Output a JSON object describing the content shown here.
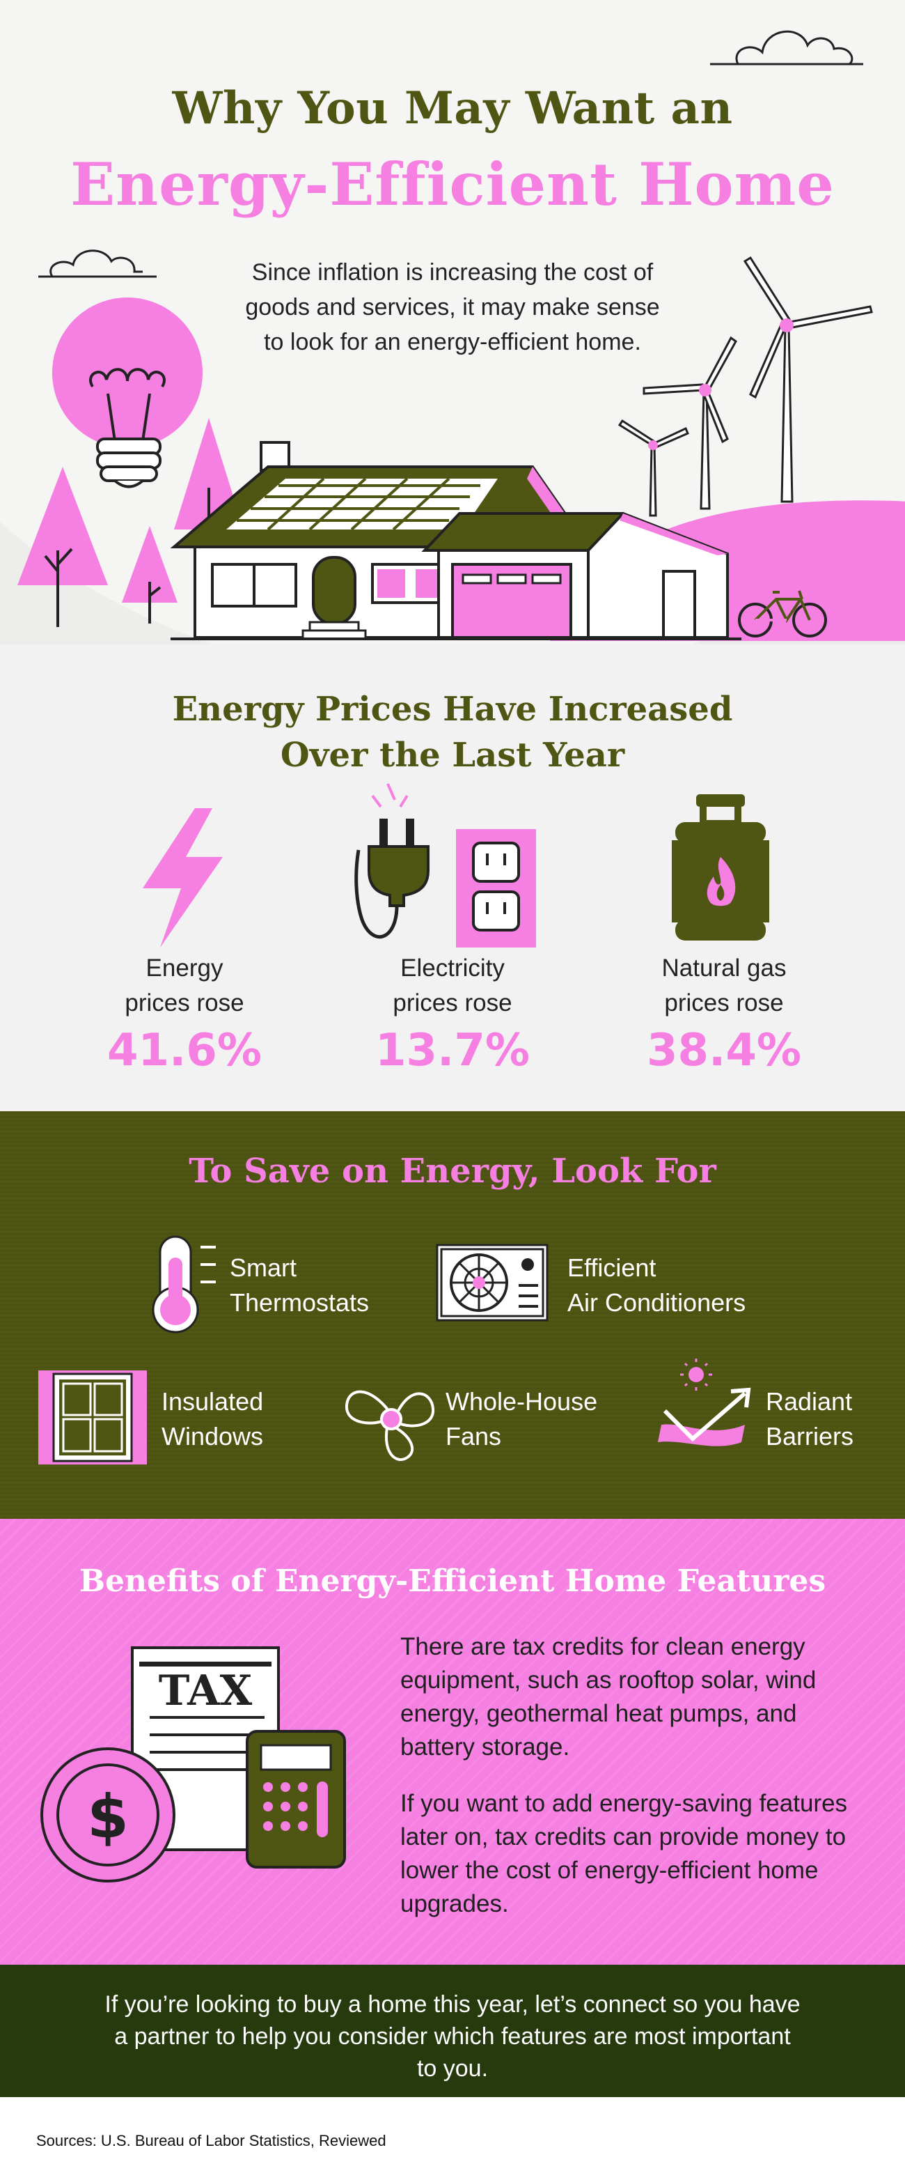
{
  "header": {
    "title_line1": "Why You May Want an",
    "title_line2": "Energy-Efficient Home",
    "intro": "Since inflation is increasing the cost of goods and services, it may make sense to look for an energy-efficient home."
  },
  "prices": {
    "title_line1": "Energy Prices Have Increased",
    "title_line2": "Over the Last Year",
    "stats": [
      {
        "label_line1": "Energy",
        "label_line2": "prices rose",
        "value": "41.6%",
        "icon": "lightning-bolt-icon"
      },
      {
        "label_line1": "Electricity",
        "label_line2": "prices rose",
        "value": "13.7%",
        "icon": "plug-outlet-icon"
      },
      {
        "label_line1": "Natural gas",
        "label_line2": "prices rose",
        "value": "38.4%",
        "icon": "gas-tank-icon"
      }
    ]
  },
  "save": {
    "title": "To Save on Energy, Look For",
    "features": [
      {
        "line1": "Smart",
        "line2": "Thermostats",
        "icon": "thermometer-icon"
      },
      {
        "line1": "Efficient",
        "line2": "Air Conditioners",
        "icon": "air-conditioner-icon"
      },
      {
        "line1": "Insulated",
        "line2": "Windows",
        "icon": "window-icon"
      },
      {
        "line1": "Whole-House",
        "line2": "Fans",
        "icon": "fan-icon"
      },
      {
        "line1": "Radiant",
        "line2": "Barriers",
        "icon": "radiant-barrier-icon"
      }
    ]
  },
  "benefits": {
    "title": "Benefits of Energy-Efficient Home Features",
    "tax_label": "TAX",
    "dollar_sign": "$",
    "paragraph1": "There are tax credits for clean energy equipment, such as rooftop solar, wind energy, geothermal heat pumps, and battery storage.",
    "paragraph2": "If you want to add energy-saving features later on, tax credits can provide money to lower the cost of energy-efficient home upgrades."
  },
  "cta": {
    "text": "If you’re looking to buy a home this year, let’s connect so you have a partner to help you consider which features are most important to you."
  },
  "sources": {
    "text": "Sources: U.S. Bureau of Labor Statistics, Reviewed"
  },
  "colors": {
    "olive": "#4f5512",
    "pink": "#f67fe2",
    "dark_green": "#263a0e",
    "background": "#f1f1f1"
  }
}
